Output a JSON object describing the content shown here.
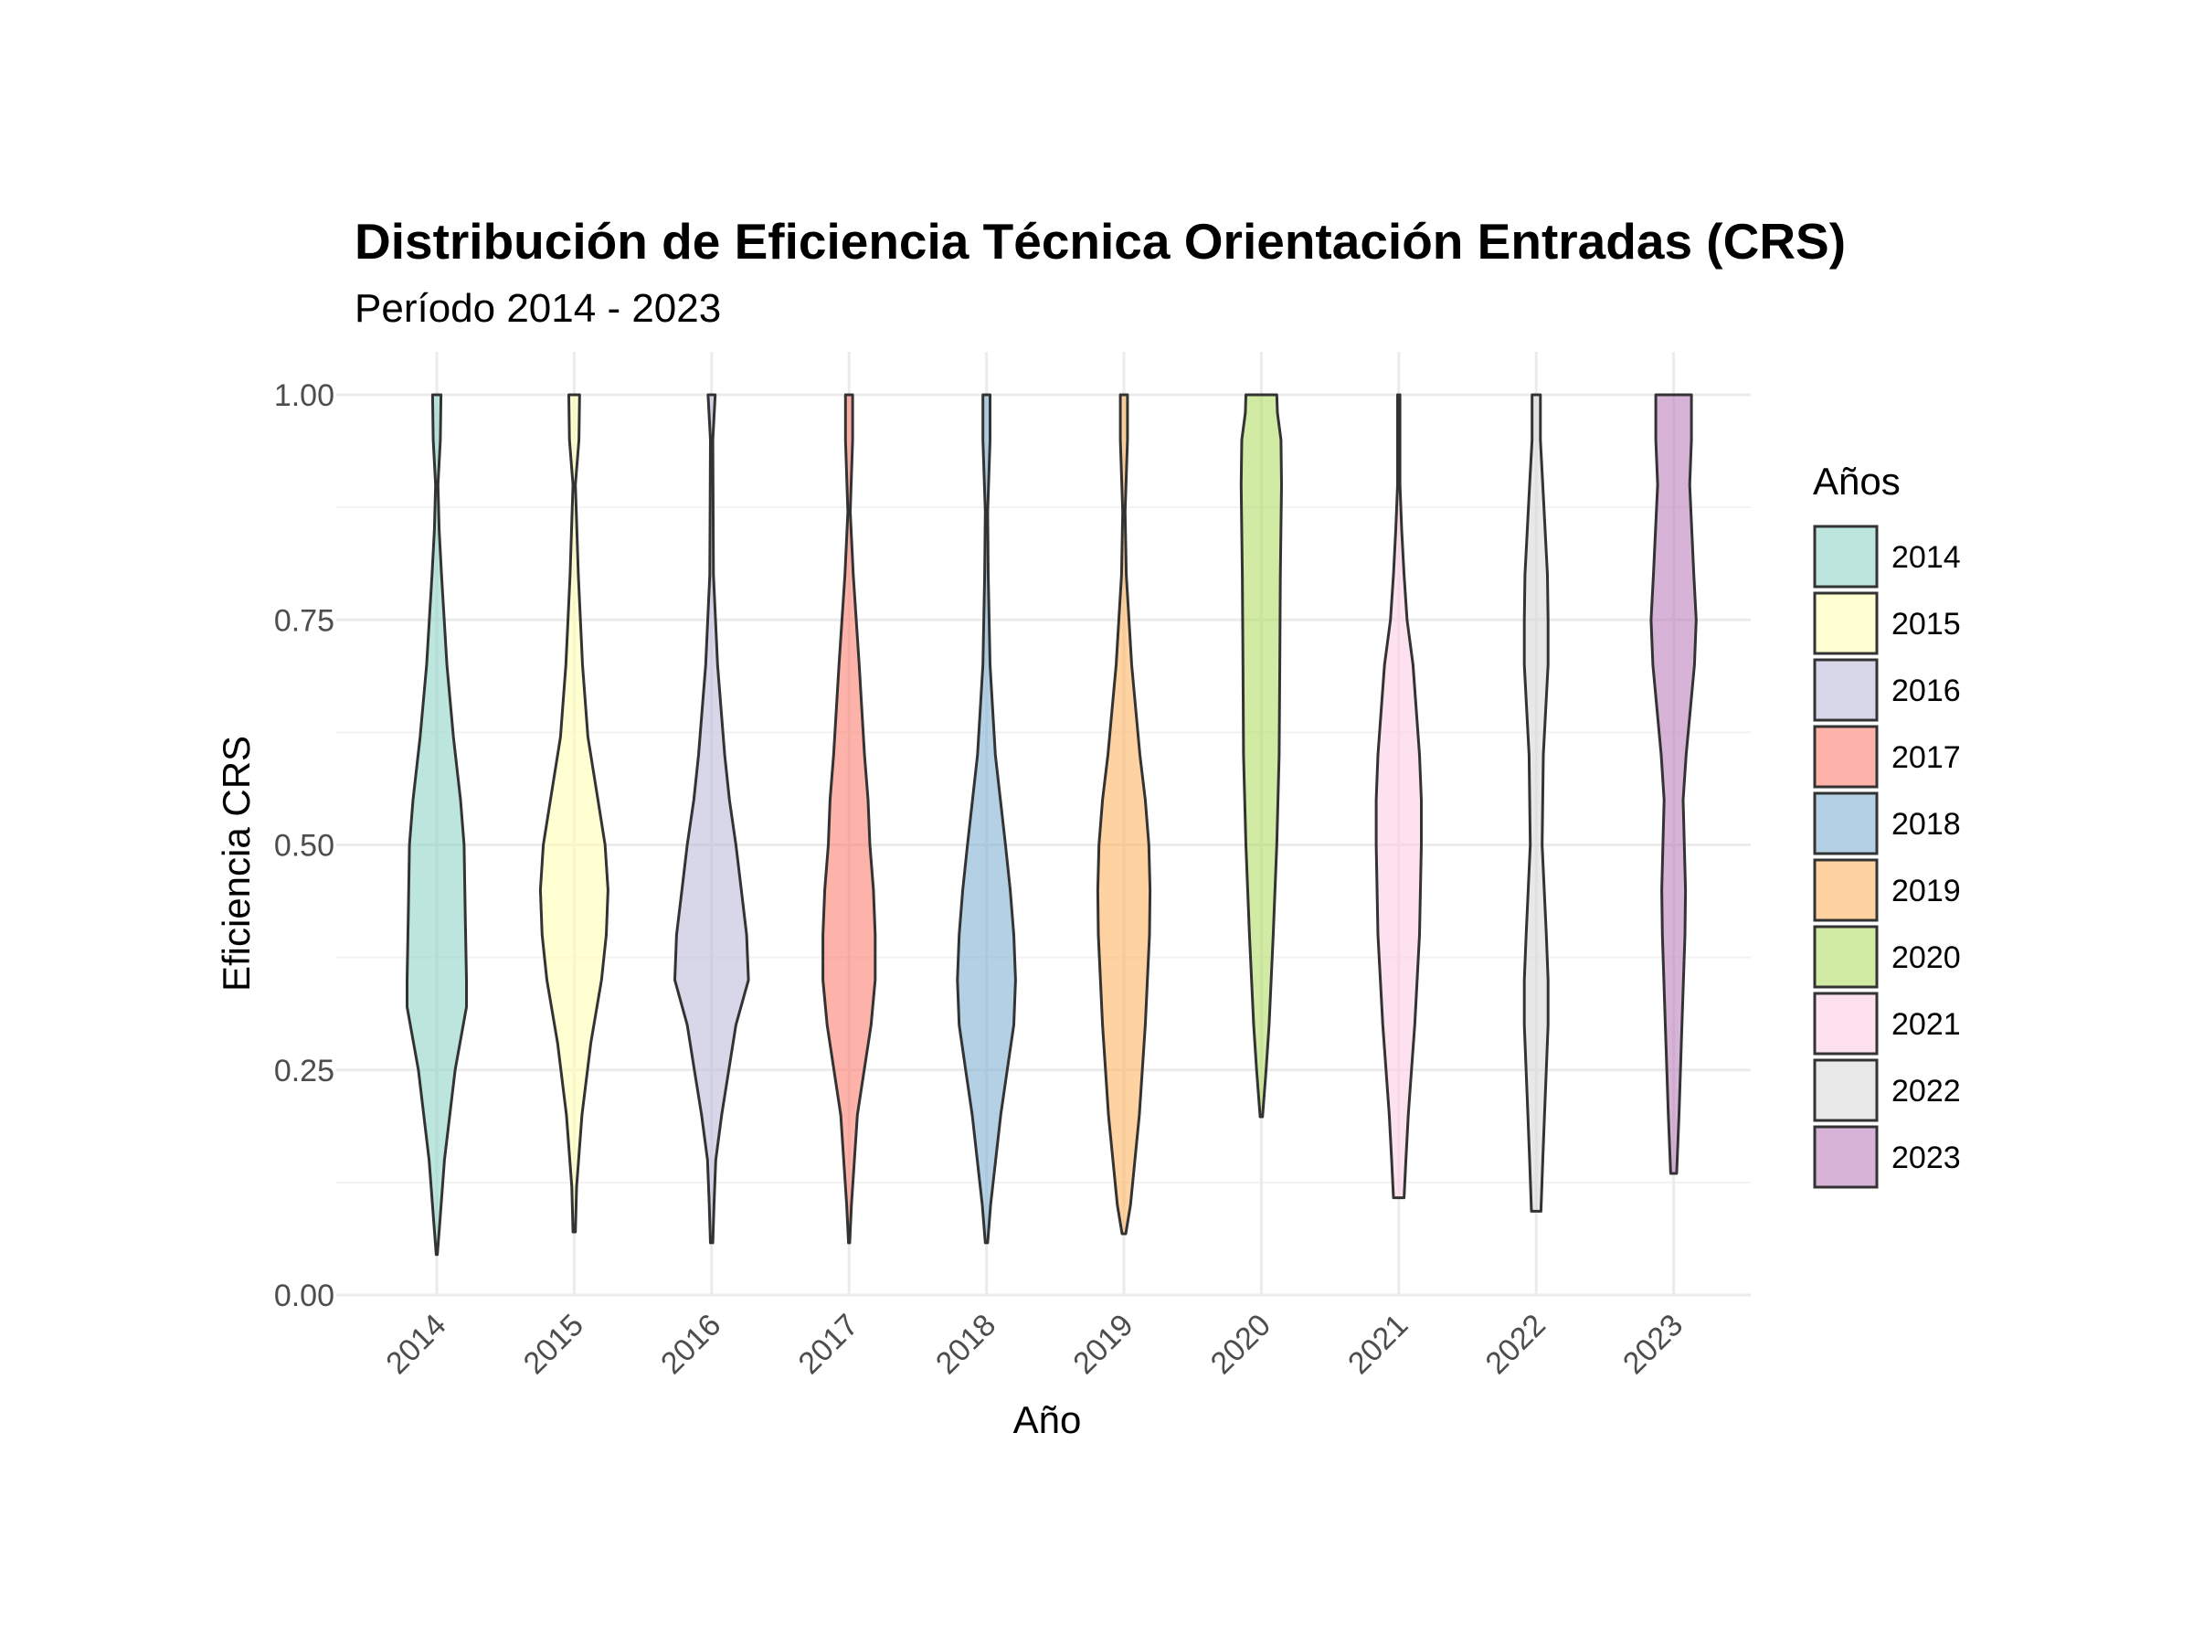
{
  "chart_data": {
    "type": "violin",
    "title": "Distribución de Eficiencia Técnica Orientación Entradas (CRS)",
    "subtitle": "Período 2014 - 2023",
    "xlabel": "Año",
    "ylabel": "Eficiencia CRS",
    "ylim": [
      0,
      1
    ],
    "yticks": [
      "0.00",
      "0.25",
      "0.50",
      "0.75",
      "1.00"
    ],
    "ytick_values": [
      0,
      0.25,
      0.5,
      0.75,
      1.0
    ],
    "categories": [
      "2014",
      "2015",
      "2016",
      "2017",
      "2018",
      "2019",
      "2020",
      "2021",
      "2022",
      "2023"
    ],
    "grid": true,
    "legend": {
      "title": "Años",
      "position": "right"
    },
    "fill_alpha": 0.6,
    "series": [
      {
        "name": "2014",
        "color": "#8DD3C7",
        "min": 0.045,
        "max": 1.0,
        "density": [
          [
            0.045,
            0.01
          ],
          [
            0.08,
            0.05
          ],
          [
            0.15,
            0.13
          ],
          [
            0.25,
            0.31
          ],
          [
            0.32,
            0.5
          ],
          [
            0.35,
            0.5
          ],
          [
            0.42,
            0.48
          ],
          [
            0.5,
            0.46
          ],
          [
            0.55,
            0.4
          ],
          [
            0.62,
            0.28
          ],
          [
            0.7,
            0.17
          ],
          [
            0.8,
            0.08
          ],
          [
            0.85,
            0.04
          ],
          [
            0.9,
            0.02
          ],
          [
            0.95,
            0.06
          ],
          [
            1.0,
            0.07
          ]
        ]
      },
      {
        "name": "2015",
        "color": "#FFFFB3",
        "min": 0.07,
        "max": 1.0,
        "density": [
          [
            0.07,
            0.02
          ],
          [
            0.12,
            0.04
          ],
          [
            0.2,
            0.13
          ],
          [
            0.28,
            0.28
          ],
          [
            0.35,
            0.46
          ],
          [
            0.4,
            0.54
          ],
          [
            0.45,
            0.57
          ],
          [
            0.5,
            0.52
          ],
          [
            0.55,
            0.4
          ],
          [
            0.62,
            0.23
          ],
          [
            0.7,
            0.14
          ],
          [
            0.8,
            0.07
          ],
          [
            0.86,
            0.04
          ],
          [
            0.9,
            0.02
          ],
          [
            0.95,
            0.08
          ],
          [
            1.0,
            0.09
          ]
        ]
      },
      {
        "name": "2016",
        "color": "#BEBADA",
        "min": 0.058,
        "max": 1.0,
        "density": [
          [
            0.058,
            0.02
          ],
          [
            0.1,
            0.04
          ],
          [
            0.15,
            0.07
          ],
          [
            0.2,
            0.17
          ],
          [
            0.25,
            0.29
          ],
          [
            0.3,
            0.41
          ],
          [
            0.35,
            0.62
          ],
          [
            0.4,
            0.59
          ],
          [
            0.45,
            0.5
          ],
          [
            0.5,
            0.41
          ],
          [
            0.55,
            0.3
          ],
          [
            0.6,
            0.22
          ],
          [
            0.7,
            0.1
          ],
          [
            0.8,
            0.03
          ],
          [
            0.95,
            0.02
          ],
          [
            1.0,
            0.06
          ]
        ]
      },
      {
        "name": "2017",
        "color": "#FB8072",
        "min": 0.058,
        "max": 1.0,
        "density": [
          [
            0.058,
            0.01
          ],
          [
            0.1,
            0.04
          ],
          [
            0.2,
            0.14
          ],
          [
            0.3,
            0.37
          ],
          [
            0.35,
            0.44
          ],
          [
            0.4,
            0.44
          ],
          [
            0.45,
            0.41
          ],
          [
            0.5,
            0.35
          ],
          [
            0.55,
            0.32
          ],
          [
            0.6,
            0.26
          ],
          [
            0.7,
            0.17
          ],
          [
            0.8,
            0.07
          ],
          [
            0.87,
            0.02
          ],
          [
            0.95,
            0.06
          ],
          [
            1.0,
            0.06
          ]
        ]
      },
      {
        "name": "2018",
        "color": "#80B1D3",
        "min": 0.058,
        "max": 1.0,
        "density": [
          [
            0.058,
            0.02
          ],
          [
            0.1,
            0.07
          ],
          [
            0.2,
            0.24
          ],
          [
            0.25,
            0.35
          ],
          [
            0.3,
            0.46
          ],
          [
            0.35,
            0.49
          ],
          [
            0.4,
            0.46
          ],
          [
            0.45,
            0.4
          ],
          [
            0.5,
            0.32
          ],
          [
            0.6,
            0.15
          ],
          [
            0.7,
            0.06
          ],
          [
            0.8,
            0.03
          ],
          [
            0.87,
            0.02
          ],
          [
            0.95,
            0.06
          ],
          [
            1.0,
            0.06
          ]
        ]
      },
      {
        "name": "2019",
        "color": "#FDB462",
        "min": 0.068,
        "max": 1.0,
        "density": [
          [
            0.068,
            0.03
          ],
          [
            0.1,
            0.11
          ],
          [
            0.2,
            0.26
          ],
          [
            0.3,
            0.36
          ],
          [
            0.4,
            0.43
          ],
          [
            0.45,
            0.44
          ],
          [
            0.5,
            0.42
          ],
          [
            0.55,
            0.36
          ],
          [
            0.6,
            0.27
          ],
          [
            0.7,
            0.13
          ],
          [
            0.8,
            0.04
          ],
          [
            0.87,
            0.02
          ],
          [
            0.95,
            0.06
          ],
          [
            1.0,
            0.06
          ]
        ]
      },
      {
        "name": "2020",
        "color": "#B3DE69",
        "min": 0.198,
        "max": 1.0,
        "density": [
          [
            0.198,
            0.02
          ],
          [
            0.25,
            0.08
          ],
          [
            0.3,
            0.13
          ],
          [
            0.4,
            0.2
          ],
          [
            0.5,
            0.26
          ],
          [
            0.6,
            0.3
          ],
          [
            0.7,
            0.31
          ],
          [
            0.8,
            0.32
          ],
          [
            0.9,
            0.34
          ],
          [
            0.95,
            0.33
          ],
          [
            0.98,
            0.27
          ],
          [
            1.0,
            0.26
          ]
        ]
      },
      {
        "name": "2021",
        "color": "#FCCDE5",
        "min": 0.108,
        "max": 1.0,
        "density": [
          [
            0.108,
            0.09
          ],
          [
            0.15,
            0.12
          ],
          [
            0.2,
            0.16
          ],
          [
            0.3,
            0.27
          ],
          [
            0.4,
            0.35
          ],
          [
            0.5,
            0.38
          ],
          [
            0.55,
            0.38
          ],
          [
            0.6,
            0.35
          ],
          [
            0.7,
            0.24
          ],
          [
            0.75,
            0.14
          ],
          [
            0.8,
            0.09
          ],
          [
            0.85,
            0.05
          ],
          [
            0.9,
            0.02
          ],
          [
            0.95,
            0.02
          ],
          [
            1.0,
            0.02
          ]
        ]
      },
      {
        "name": "2022",
        "color": "#D9D9D9",
        "min": 0.093,
        "max": 1.0,
        "density": [
          [
            0.093,
            0.08
          ],
          [
            0.15,
            0.11
          ],
          [
            0.2,
            0.14
          ],
          [
            0.3,
            0.2
          ],
          [
            0.35,
            0.2
          ],
          [
            0.4,
            0.17
          ],
          [
            0.5,
            0.1
          ],
          [
            0.6,
            0.12
          ],
          [
            0.7,
            0.2
          ],
          [
            0.75,
            0.2
          ],
          [
            0.8,
            0.19
          ],
          [
            0.9,
            0.11
          ],
          [
            0.95,
            0.07
          ],
          [
            1.0,
            0.07
          ]
        ]
      },
      {
        "name": "2023",
        "color": "#BC80BD",
        "min": 0.135,
        "max": 1.0,
        "density": [
          [
            0.135,
            0.05
          ],
          [
            0.2,
            0.09
          ],
          [
            0.3,
            0.14
          ],
          [
            0.4,
            0.19
          ],
          [
            0.45,
            0.2
          ],
          [
            0.5,
            0.18
          ],
          [
            0.55,
            0.16
          ],
          [
            0.6,
            0.21
          ],
          [
            0.7,
            0.35
          ],
          [
            0.75,
            0.38
          ],
          [
            0.8,
            0.34
          ],
          [
            0.9,
            0.27
          ],
          [
            0.95,
            0.3
          ],
          [
            1.0,
            0.3
          ]
        ]
      }
    ]
  }
}
